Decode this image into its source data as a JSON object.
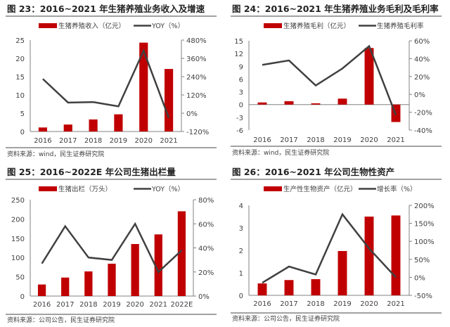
{
  "colors": {
    "bar": "#c00000",
    "line": "#404040",
    "axis": "#808080",
    "text": "#404040"
  },
  "chart_data": [
    {
      "type": "bar+line",
      "title": "图 23：2016~2021 年生猪养殖业务收入及增速",
      "categories": [
        "2016",
        "2017",
        "2018",
        "2019",
        "2020",
        "2021"
      ],
      "series": [
        {
          "name": "生猪养殖收入（亿元）",
          "type": "bar",
          "axis": "left",
          "values": [
            1.1,
            1.9,
            3.3,
            4.7,
            24.3,
            17.1
          ]
        },
        {
          "name": "YOY（%）",
          "type": "line",
          "axis": "right",
          "values": [
            225,
            70,
            73,
            45,
            410,
            -30
          ]
        }
      ],
      "left_ticks": [
        "0",
        "5",
        "10",
        "15",
        "20",
        "25"
      ],
      "ylim": [
        0,
        25
      ],
      "right_ticks": [
        "-120%",
        "0%",
        "120%",
        "240%",
        "360%",
        "480%"
      ],
      "y2lim": [
        -120,
        480
      ],
      "source": "资料来源：wind，民生证券研究院"
    },
    {
      "type": "bar+line",
      "title": "图 24：2016~2021 年生猪养殖业务毛利及毛利率",
      "categories": [
        "2016",
        "2017",
        "2018",
        "2019",
        "2020",
        "2021"
      ],
      "series": [
        {
          "name": "生猪养殖毛利（亿元）",
          "type": "bar",
          "axis": "left",
          "values": [
            0.5,
            0.8,
            0.3,
            1.4,
            13.3,
            -4.1
          ]
        },
        {
          "name": "生猪养殖毛利率",
          "type": "line",
          "axis": "right",
          "values": [
            33,
            38,
            10,
            29,
            54,
            -23
          ]
        }
      ],
      "left_ticks": [
        "-6",
        "-3",
        "0",
        "3",
        "6",
        "9",
        "12",
        "15"
      ],
      "ylim": [
        -6,
        15
      ],
      "right_ticks": [
        "-40%",
        "-20%",
        "0%",
        "20%",
        "40%",
        "60%"
      ],
      "y2lim": [
        -40,
        60
      ],
      "source": "资料来源：wind，民生证券研究院"
    },
    {
      "type": "bar+line",
      "title": "图 25：2016~2022E 年公司生猪出栏量",
      "categories": [
        "2016",
        "2017",
        "2018",
        "2019",
        "2020",
        "2021",
        "2022E"
      ],
      "series": [
        {
          "name": "生猪出栏（万头）",
          "type": "bar",
          "axis": "left",
          "values": [
            30,
            48,
            64,
            84,
            135,
            160,
            220
          ]
        },
        {
          "name": "YOY（%）",
          "type": "line",
          "axis": "right",
          "values": [
            27,
            58,
            32,
            30,
            60,
            20,
            38
          ]
        }
      ],
      "left_ticks": [
        "0",
        "50",
        "100",
        "150",
        "200",
        "250"
      ],
      "ylim": [
        0,
        250
      ],
      "right_ticks": [
        "0%",
        "20%",
        "40%",
        "60%",
        "80%"
      ],
      "y2lim": [
        0,
        80
      ],
      "source": "资料来源：公司公告，民生证券研究院"
    },
    {
      "type": "bar+line",
      "title": "图 26：2016~2021 年公司生物性资产",
      "categories": [
        "2016",
        "2017",
        "2018",
        "2019",
        "2020",
        "2021"
      ],
      "series": [
        {
          "name": "生产性生物资产（亿元）",
          "type": "bar",
          "axis": "left",
          "values": [
            0.53,
            0.68,
            0.72,
            1.97,
            3.5,
            3.55
          ]
        },
        {
          "name": "增长率（%）",
          "type": "line",
          "axis": "right",
          "values": [
            -15,
            30,
            8,
            175,
            80,
            0
          ]
        }
      ],
      "left_ticks": [
        "0",
        "1",
        "2",
        "3",
        "4"
      ],
      "ylim": [
        0,
        4
      ],
      "right_ticks": [
        "-50%",
        "0%",
        "50%",
        "100%",
        "150%",
        "200%"
      ],
      "y2lim": [
        -50,
        200
      ],
      "source": "资料来源：公司公告，民生证券研究院"
    }
  ]
}
